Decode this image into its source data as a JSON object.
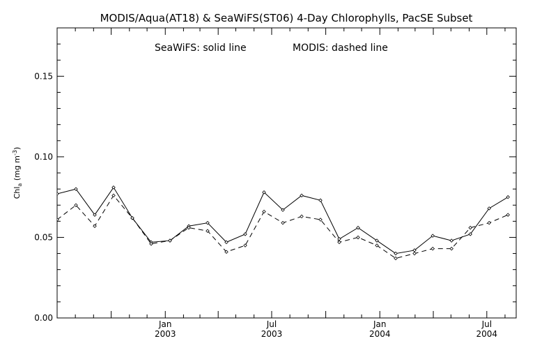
{
  "chart_data": {
    "type": "line",
    "title": "MODIS/Aqua(AT18) & SeaWiFS(ST06) 4-Day Chlorophylls, PacSE Subset",
    "annotations": [
      "SeaWiFS: solid line",
      "MODIS: dashed line"
    ],
    "ylabel": {
      "base": "Chl",
      "sub": "a",
      "unit_open": " (mg m",
      "sup": "-3",
      "unit_close": ")"
    },
    "xlim": [
      "2002-07-01",
      "2004-08-20"
    ],
    "ylim": [
      0.0,
      0.18
    ],
    "yticks": [
      "0.00",
      "0.05",
      "0.10",
      "0.15"
    ],
    "xticks": [
      {
        "date": "2003-01-01",
        "label1": "Jan",
        "label2": "2003"
      },
      {
        "date": "2003-07-01",
        "label1": "Jul",
        "label2": "2003"
      },
      {
        "date": "2004-01-01",
        "label1": "Jan",
        "label2": "2004"
      },
      {
        "date": "2004-07-01",
        "label1": "Jul",
        "label2": "2004"
      }
    ],
    "grid": false,
    "x": [
      "2002-07-01",
      "2002-08-02",
      "2002-09-03",
      "2002-10-05",
      "2002-11-06",
      "2002-12-08",
      "2003-01-09",
      "2003-02-10",
      "2003-03-14",
      "2003-04-15",
      "2003-05-17",
      "2003-06-18",
      "2003-07-20",
      "2003-08-21",
      "2003-09-22",
      "2003-10-24",
      "2003-11-25",
      "2003-12-27",
      "2004-01-28",
      "2004-02-29",
      "2004-03-31",
      "2004-05-02",
      "2004-06-03",
      "2004-07-05",
      "2004-08-06",
      "2004-08-20"
    ],
    "series": [
      {
        "name": "SeaWiFS",
        "style": "solid",
        "values": [
          0.077,
          0.08,
          0.064,
          0.081,
          0.062,
          0.047,
          0.048,
          0.057,
          0.059,
          0.047,
          0.052,
          0.078,
          0.067,
          0.076,
          0.073,
          0.049,
          0.056,
          0.048,
          0.04,
          0.042,
          0.051,
          0.048,
          0.052,
          0.068,
          0.075,
          null
        ]
      },
      {
        "name": "MODIS",
        "style": "dashed",
        "values": [
          0.061,
          0.07,
          0.057,
          0.076,
          0.062,
          0.046,
          0.048,
          0.056,
          0.054,
          0.041,
          0.045,
          0.066,
          0.059,
          0.063,
          0.061,
          0.047,
          0.05,
          0.045,
          0.037,
          0.04,
          0.043,
          0.043,
          0.056,
          0.059,
          0.064,
          null
        ]
      }
    ]
  }
}
